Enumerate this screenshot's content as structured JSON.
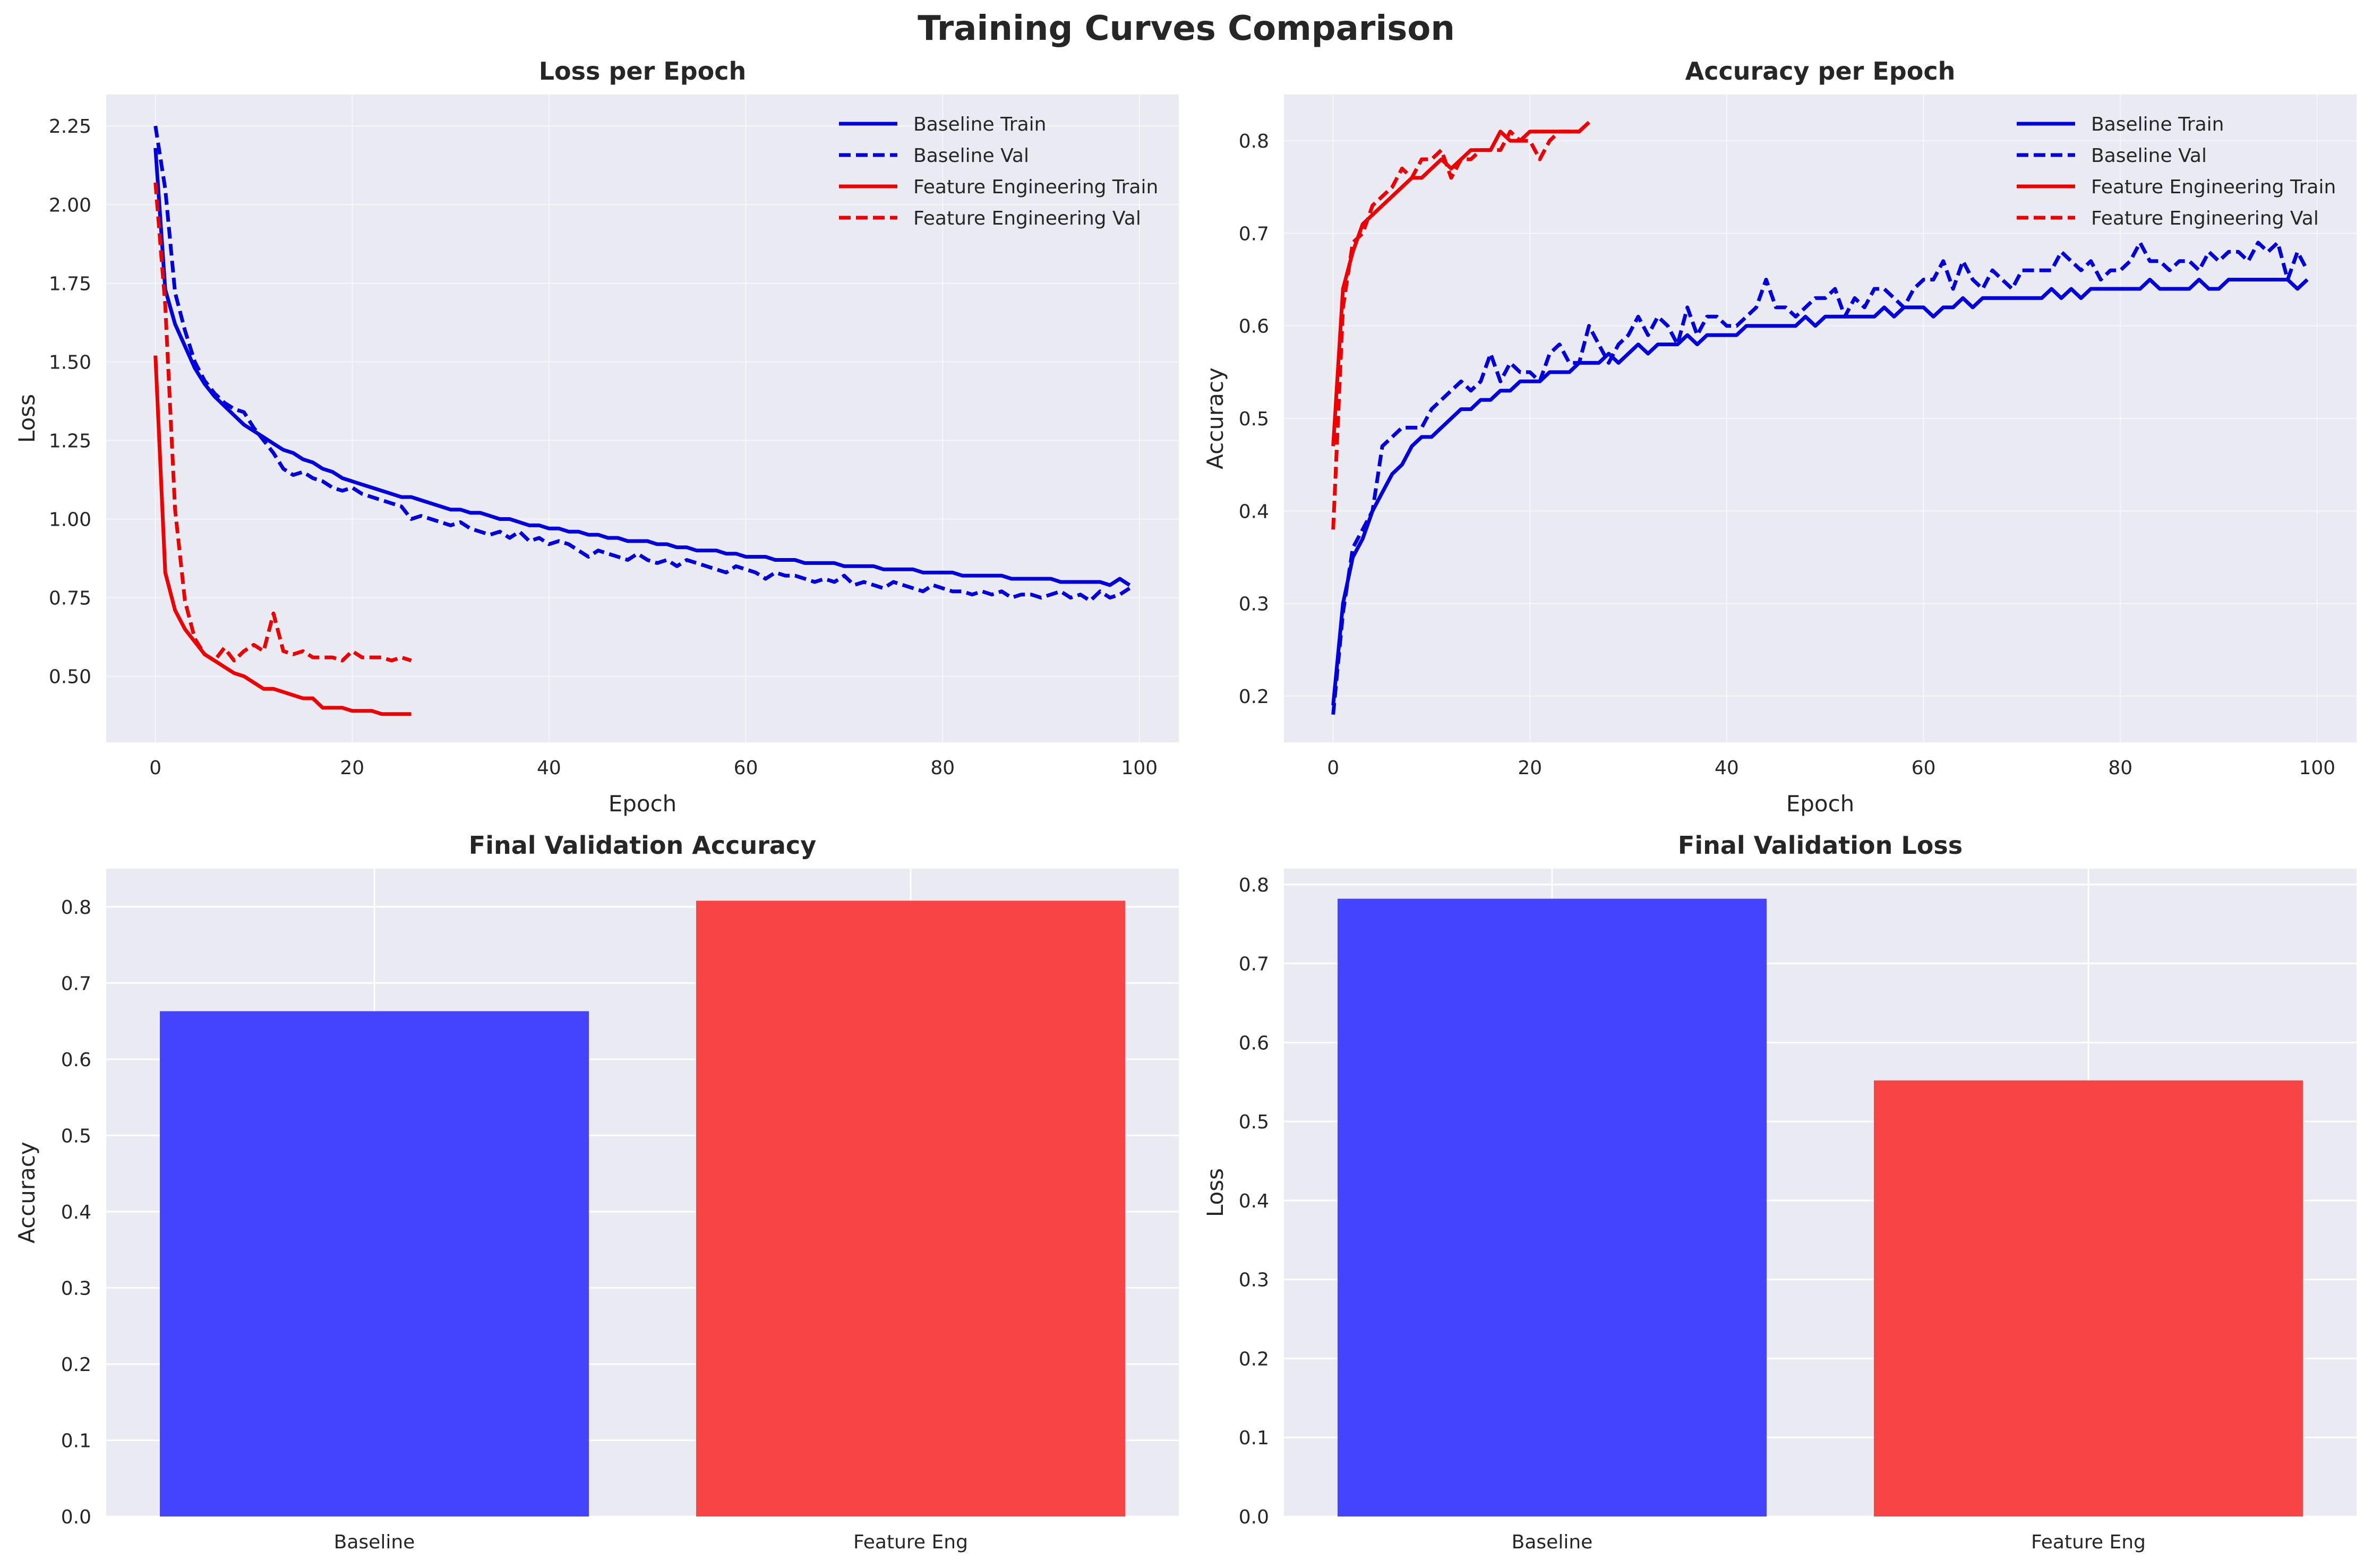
{
  "figure": {
    "title": "Training Curves Comparison"
  },
  "colors": {
    "baseline": "#0000dd",
    "feature": "#ee0000",
    "baseline_bar": "#4444ff",
    "feature_bar": "#f84444",
    "panel_bg": "#eaeaf2",
    "grid": "#ffffff"
  },
  "chart_data": [
    {
      "id": "loss",
      "type": "line",
      "title": "Loss per Epoch",
      "xlabel": "Epoch",
      "ylabel": "Loss",
      "xlim": [
        -5,
        104
      ],
      "ylim": [
        0.29,
        2.35
      ],
      "xticks": [
        0,
        20,
        40,
        60,
        80,
        100
      ],
      "yticks": [
        0.5,
        0.75,
        1.0,
        1.25,
        1.5,
        1.75,
        2.0,
        2.25
      ],
      "ytick_labels": [
        "0.50",
        "0.75",
        "1.00",
        "1.25",
        "1.50",
        "1.75",
        "2.00",
        "2.25"
      ],
      "grid": true,
      "legend": "top-right",
      "series": [
        {
          "name": "Baseline Train",
          "style": "solid",
          "color": "baseline",
          "x_start": 0,
          "values": [
            2.18,
            1.73,
            1.62,
            1.55,
            1.48,
            1.43,
            1.39,
            1.36,
            1.33,
            1.3,
            1.28,
            1.26,
            1.24,
            1.22,
            1.21,
            1.19,
            1.18,
            1.16,
            1.15,
            1.13,
            1.12,
            1.11,
            1.1,
            1.09,
            1.08,
            1.07,
            1.07,
            1.06,
            1.05,
            1.04,
            1.03,
            1.03,
            1.02,
            1.02,
            1.01,
            1.0,
            1.0,
            0.99,
            0.98,
            0.98,
            0.97,
            0.97,
            0.96,
            0.96,
            0.95,
            0.95,
            0.94,
            0.94,
            0.93,
            0.93,
            0.93,
            0.92,
            0.92,
            0.91,
            0.91,
            0.9,
            0.9,
            0.9,
            0.89,
            0.89,
            0.88,
            0.88,
            0.88,
            0.87,
            0.87,
            0.87,
            0.86,
            0.86,
            0.86,
            0.86,
            0.85,
            0.85,
            0.85,
            0.85,
            0.84,
            0.84,
            0.84,
            0.84,
            0.83,
            0.83,
            0.83,
            0.83,
            0.82,
            0.82,
            0.82,
            0.82,
            0.82,
            0.81,
            0.81,
            0.81,
            0.81,
            0.81,
            0.8,
            0.8,
            0.8,
            0.8,
            0.8,
            0.79,
            0.81,
            0.79
          ]
        },
        {
          "name": "Baseline Val",
          "style": "dashed",
          "color": "baseline",
          "x_start": 0,
          "values": [
            2.25,
            2.05,
            1.72,
            1.6,
            1.5,
            1.44,
            1.4,
            1.37,
            1.35,
            1.34,
            1.29,
            1.25,
            1.21,
            1.16,
            1.14,
            1.15,
            1.13,
            1.12,
            1.1,
            1.09,
            1.1,
            1.08,
            1.07,
            1.06,
            1.05,
            1.04,
            1.0,
            1.01,
            1.0,
            0.99,
            0.98,
            0.99,
            0.97,
            0.96,
            0.95,
            0.96,
            0.94,
            0.96,
            0.93,
            0.94,
            0.92,
            0.93,
            0.92,
            0.9,
            0.88,
            0.9,
            0.89,
            0.88,
            0.87,
            0.89,
            0.87,
            0.86,
            0.87,
            0.85,
            0.87,
            0.86,
            0.85,
            0.84,
            0.83,
            0.85,
            0.84,
            0.83,
            0.81,
            0.83,
            0.82,
            0.82,
            0.81,
            0.8,
            0.81,
            0.8,
            0.82,
            0.79,
            0.8,
            0.79,
            0.78,
            0.8,
            0.79,
            0.78,
            0.77,
            0.79,
            0.78,
            0.77,
            0.77,
            0.76,
            0.77,
            0.76,
            0.77,
            0.75,
            0.76,
            0.76,
            0.75,
            0.76,
            0.77,
            0.75,
            0.76,
            0.74,
            0.77,
            0.75,
            0.76,
            0.78
          ]
        },
        {
          "name": "Feature Engineering Train",
          "style": "solid",
          "color": "feature",
          "x_start": 0,
          "values": [
            1.52,
            0.83,
            0.71,
            0.65,
            0.61,
            0.57,
            0.55,
            0.53,
            0.51,
            0.5,
            0.48,
            0.46,
            0.46,
            0.45,
            0.44,
            0.43,
            0.43,
            0.4,
            0.4,
            0.4,
            0.39,
            0.39,
            0.39,
            0.38,
            0.38,
            0.38,
            0.38
          ]
        },
        {
          "name": "Feature Engineering Val",
          "style": "dashed",
          "color": "feature",
          "x_start": 0,
          "values": [
            2.07,
            1.68,
            1.03,
            0.74,
            0.62,
            0.57,
            0.55,
            0.59,
            0.55,
            0.58,
            0.6,
            0.58,
            0.7,
            0.58,
            0.57,
            0.58,
            0.56,
            0.56,
            0.56,
            0.55,
            0.58,
            0.56,
            0.56,
            0.56,
            0.55,
            0.56,
            0.55
          ]
        }
      ]
    },
    {
      "id": "acc",
      "type": "line",
      "title": "Accuracy per Epoch",
      "xlabel": "Epoch",
      "ylabel": "Accuracy",
      "xlim": [
        -5,
        104
      ],
      "ylim": [
        0.15,
        0.85
      ],
      "xticks": [
        0,
        20,
        40,
        60,
        80,
        100
      ],
      "yticks": [
        0.2,
        0.3,
        0.4,
        0.5,
        0.6,
        0.7,
        0.8
      ],
      "ytick_labels": [
        "0.2",
        "0.3",
        "0.4",
        "0.5",
        "0.6",
        "0.7",
        "0.8"
      ],
      "grid": true,
      "legend": "top-right",
      "series": [
        {
          "name": "Baseline Train",
          "style": "solid",
          "color": "baseline",
          "x_start": 0,
          "values": [
            0.19,
            0.3,
            0.35,
            0.37,
            0.4,
            0.42,
            0.44,
            0.45,
            0.47,
            0.48,
            0.48,
            0.49,
            0.5,
            0.51,
            0.51,
            0.52,
            0.52,
            0.53,
            0.53,
            0.54,
            0.54,
            0.54,
            0.55,
            0.55,
            0.55,
            0.56,
            0.56,
            0.56,
            0.57,
            0.56,
            0.57,
            0.58,
            0.57,
            0.58,
            0.58,
            0.58,
            0.59,
            0.58,
            0.59,
            0.59,
            0.59,
            0.59,
            0.6,
            0.6,
            0.6,
            0.6,
            0.6,
            0.6,
            0.61,
            0.6,
            0.61,
            0.61,
            0.61,
            0.61,
            0.61,
            0.61,
            0.62,
            0.61,
            0.62,
            0.62,
            0.62,
            0.61,
            0.62,
            0.62,
            0.63,
            0.62,
            0.63,
            0.63,
            0.63,
            0.63,
            0.63,
            0.63,
            0.63,
            0.64,
            0.63,
            0.64,
            0.63,
            0.64,
            0.64,
            0.64,
            0.64,
            0.64,
            0.64,
            0.65,
            0.64,
            0.64,
            0.64,
            0.64,
            0.65,
            0.64,
            0.64,
            0.65,
            0.65,
            0.65,
            0.65,
            0.65,
            0.65,
            0.65,
            0.64,
            0.65
          ]
        },
        {
          "name": "Baseline Val",
          "style": "dashed",
          "color": "baseline",
          "x_start": 0,
          "values": [
            0.18,
            0.29,
            0.36,
            0.38,
            0.4,
            0.47,
            0.48,
            0.49,
            0.49,
            0.49,
            0.51,
            0.52,
            0.53,
            0.54,
            0.53,
            0.54,
            0.57,
            0.54,
            0.56,
            0.55,
            0.55,
            0.54,
            0.57,
            0.58,
            0.56,
            0.56,
            0.6,
            0.58,
            0.56,
            0.58,
            0.59,
            0.61,
            0.59,
            0.61,
            0.6,
            0.58,
            0.62,
            0.59,
            0.61,
            0.61,
            0.6,
            0.6,
            0.61,
            0.62,
            0.65,
            0.62,
            0.62,
            0.61,
            0.62,
            0.63,
            0.63,
            0.64,
            0.61,
            0.63,
            0.62,
            0.64,
            0.64,
            0.63,
            0.62,
            0.64,
            0.65,
            0.65,
            0.67,
            0.64,
            0.67,
            0.65,
            0.64,
            0.66,
            0.65,
            0.64,
            0.66,
            0.66,
            0.66,
            0.66,
            0.68,
            0.67,
            0.66,
            0.67,
            0.65,
            0.66,
            0.66,
            0.67,
            0.69,
            0.67,
            0.67,
            0.66,
            0.67,
            0.67,
            0.66,
            0.68,
            0.67,
            0.68,
            0.68,
            0.67,
            0.69,
            0.68,
            0.69,
            0.65,
            0.68,
            0.66
          ]
        },
        {
          "name": "Feature Engineering Train",
          "style": "solid",
          "color": "feature",
          "x_start": 0,
          "values": [
            0.47,
            0.64,
            0.68,
            0.71,
            0.72,
            0.73,
            0.74,
            0.75,
            0.76,
            0.76,
            0.77,
            0.78,
            0.77,
            0.78,
            0.79,
            0.79,
            0.79,
            0.81,
            0.8,
            0.8,
            0.81,
            0.81,
            0.81,
            0.81,
            0.81,
            0.81,
            0.82
          ]
        },
        {
          "name": "Feature Engineering Val",
          "style": "dashed",
          "color": "feature",
          "x_start": 0,
          "values": [
            0.38,
            0.62,
            0.69,
            0.7,
            0.73,
            0.74,
            0.75,
            0.77,
            0.76,
            0.78,
            0.78,
            0.79,
            0.76,
            0.78,
            0.78,
            0.79,
            0.79,
            0.79,
            0.81,
            0.8,
            0.8,
            0.78,
            0.8,
            0.81,
            0.81,
            0.81,
            0.82
          ]
        }
      ]
    },
    {
      "id": "final_acc",
      "type": "bar",
      "title": "Final Validation Accuracy",
      "xlabel": "",
      "ylabel": "Accuracy",
      "categories": [
        "Baseline",
        "Feature Eng"
      ],
      "values": [
        0.663,
        0.808
      ],
      "bar_colors": [
        "baseline_bar",
        "feature_bar"
      ],
      "ylim": [
        0,
        0.85
      ],
      "yticks": [
        0.0,
        0.1,
        0.2,
        0.3,
        0.4,
        0.5,
        0.6,
        0.7,
        0.8
      ],
      "ytick_labels": [
        "0.0",
        "0.1",
        "0.2",
        "0.3",
        "0.4",
        "0.5",
        "0.6",
        "0.7",
        "0.8"
      ],
      "grid": true
    },
    {
      "id": "final_loss",
      "type": "bar",
      "title": "Final Validation Loss",
      "xlabel": "",
      "ylabel": "Loss",
      "categories": [
        "Baseline",
        "Feature Eng"
      ],
      "values": [
        0.782,
        0.552
      ],
      "bar_colors": [
        "baseline_bar",
        "feature_bar"
      ],
      "ylim": [
        0,
        0.82
      ],
      "yticks": [
        0.0,
        0.1,
        0.2,
        0.3,
        0.4,
        0.5,
        0.6,
        0.7,
        0.8
      ],
      "ytick_labels": [
        "0.0",
        "0.1",
        "0.2",
        "0.3",
        "0.4",
        "0.5",
        "0.6",
        "0.7",
        "0.8"
      ],
      "grid": true
    }
  ]
}
